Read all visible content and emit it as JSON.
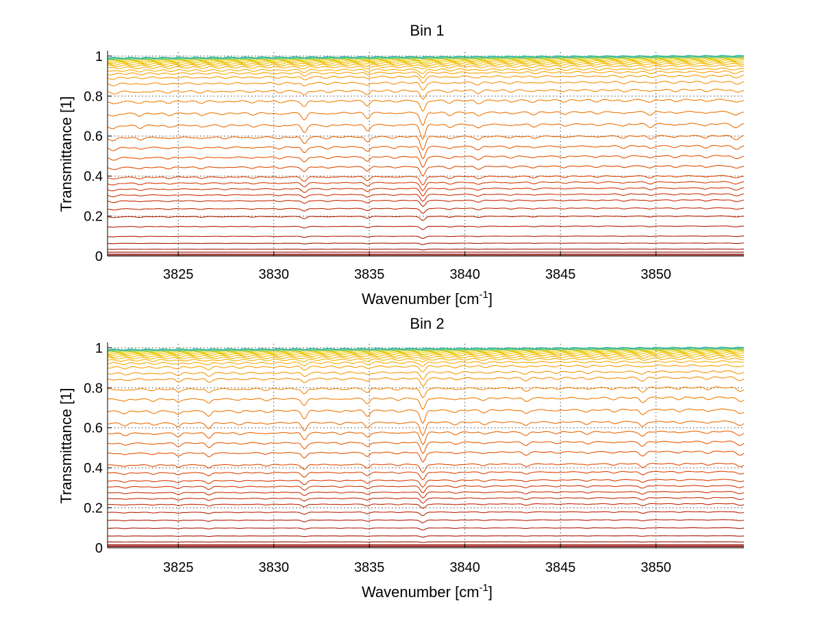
{
  "chart_data": [
    {
      "type": "line",
      "title": "Bin 1",
      "xlabel": "Wavenumber [cm",
      "xlabel_sup": "-1",
      "xlabel_end": "]",
      "ylabel": "Transmittance [1]",
      "xlim": [
        3821.3,
        3854.6
      ],
      "ylim": [
        0,
        1.02
      ],
      "xticks": [
        3825,
        3830,
        3835,
        3840,
        3845,
        3850
      ],
      "yticks": [
        0,
        0.2,
        0.4,
        0.6,
        0.8,
        1
      ],
      "xtick_labels": [
        "3825",
        "3830",
        "3835",
        "3840",
        "3845",
        "3850"
      ],
      "ytick_labels": [
        "0",
        "0.2",
        "0.4",
        "0.6",
        "0.8",
        "1"
      ],
      "grid": true,
      "series_count": 40,
      "series_colormap": [
        "#7a0000",
        "#b01a00",
        "#d83a00",
        "#f07000",
        "#f8a800",
        "#e8d000",
        "#20b8b0"
      ],
      "baseline_levels": [
        0.0,
        0.005,
        0.01,
        0.02,
        0.035,
        0.065,
        0.1,
        0.15,
        0.2,
        0.24,
        0.28,
        0.31,
        0.34,
        0.37,
        0.4,
        0.45,
        0.5,
        0.55,
        0.6,
        0.66,
        0.72,
        0.78,
        0.83,
        0.87,
        0.9,
        0.92,
        0.935,
        0.95,
        0.96,
        0.968,
        0.975,
        0.98,
        0.985,
        0.988,
        0.991,
        0.993,
        0.995,
        0.996,
        0.997,
        0.998
      ],
      "absorption_lines": [
        {
          "x": 3821.6,
          "depth": 0.2,
          "width": 0.25
        },
        {
          "x": 3823.0,
          "depth": 0.15,
          "width": 0.2
        },
        {
          "x": 3824.5,
          "depth": 0.12,
          "width": 0.2
        },
        {
          "x": 3826.2,
          "depth": 0.12,
          "width": 0.2
        },
        {
          "x": 3827.4,
          "depth": 0.08,
          "width": 0.2
        },
        {
          "x": 3828.9,
          "depth": 0.1,
          "width": 0.2
        },
        {
          "x": 3830.3,
          "depth": 0.12,
          "width": 0.2
        },
        {
          "x": 3831.6,
          "depth": 0.45,
          "width": 0.18
        },
        {
          "x": 3832.8,
          "depth": 0.12,
          "width": 0.2
        },
        {
          "x": 3834.9,
          "depth": 0.38,
          "width": 0.18
        },
        {
          "x": 3836.3,
          "depth": 0.1,
          "width": 0.2
        },
        {
          "x": 3837.8,
          "depth": 0.9,
          "width": 0.18
        },
        {
          "x": 3839.2,
          "depth": 0.18,
          "width": 0.2
        },
        {
          "x": 3840.7,
          "depth": 0.25,
          "width": 0.2
        },
        {
          "x": 3842.4,
          "depth": 0.12,
          "width": 0.2
        },
        {
          "x": 3843.6,
          "depth": 0.15,
          "width": 0.2
        },
        {
          "x": 3845.2,
          "depth": 0.12,
          "width": 0.2
        },
        {
          "x": 3846.9,
          "depth": 0.1,
          "width": 0.2
        },
        {
          "x": 3848.3,
          "depth": 0.15,
          "width": 0.2
        },
        {
          "x": 3849.7,
          "depth": 0.2,
          "width": 0.2
        },
        {
          "x": 3851.0,
          "depth": 0.12,
          "width": 0.2
        },
        {
          "x": 3852.6,
          "depth": 0.15,
          "width": 0.2
        },
        {
          "x": 3854.2,
          "depth": 0.25,
          "width": 0.25
        }
      ]
    },
    {
      "type": "line",
      "title": "Bin 2",
      "xlabel": "Wavenumber [cm",
      "xlabel_sup": "-1",
      "xlabel_end": "]",
      "ylabel": "Transmittance [1]",
      "xlim": [
        3821.3,
        3854.6
      ],
      "ylim": [
        0,
        1.02
      ],
      "xticks": [
        3825,
        3830,
        3835,
        3840,
        3845,
        3850
      ],
      "yticks": [
        0,
        0.2,
        0.4,
        0.6,
        0.8,
        1
      ],
      "xtick_labels": [
        "3825",
        "3830",
        "3835",
        "3840",
        "3845",
        "3850"
      ],
      "ytick_labels": [
        "0",
        "0.2",
        "0.4",
        "0.6",
        "0.8",
        "1"
      ],
      "grid": true,
      "series_count": 40,
      "series_colormap": [
        "#7a0000",
        "#b01a00",
        "#d83a00",
        "#f07000",
        "#f8a800",
        "#e8d000",
        "#20b8b0"
      ],
      "baseline_levels": [
        0.0,
        0.005,
        0.01,
        0.015,
        0.03,
        0.06,
        0.1,
        0.14,
        0.18,
        0.22,
        0.25,
        0.28,
        0.31,
        0.34,
        0.38,
        0.42,
        0.48,
        0.53,
        0.58,
        0.63,
        0.69,
        0.75,
        0.8,
        0.85,
        0.88,
        0.91,
        0.93,
        0.945,
        0.956,
        0.965,
        0.973,
        0.979,
        0.984,
        0.988,
        0.991,
        0.993,
        0.995,
        0.996,
        0.997,
        0.998
      ],
      "absorption_lines": [
        {
          "x": 3822.2,
          "depth": 0.15,
          "width": 0.2
        },
        {
          "x": 3823.7,
          "depth": 0.12,
          "width": 0.2
        },
        {
          "x": 3825.0,
          "depth": 0.25,
          "width": 0.18
        },
        {
          "x": 3826.6,
          "depth": 0.35,
          "width": 0.18
        },
        {
          "x": 3828.2,
          "depth": 0.1,
          "width": 0.2
        },
        {
          "x": 3829.6,
          "depth": 0.1,
          "width": 0.2
        },
        {
          "x": 3831.6,
          "depth": 0.5,
          "width": 0.18
        },
        {
          "x": 3833.5,
          "depth": 0.1,
          "width": 0.2
        },
        {
          "x": 3834.9,
          "depth": 0.35,
          "width": 0.18
        },
        {
          "x": 3836.5,
          "depth": 0.1,
          "width": 0.2
        },
        {
          "x": 3837.8,
          "depth": 0.85,
          "width": 0.18
        },
        {
          "x": 3839.5,
          "depth": 0.15,
          "width": 0.2
        },
        {
          "x": 3841.0,
          "depth": 0.15,
          "width": 0.2
        },
        {
          "x": 3843.2,
          "depth": 0.25,
          "width": 0.2
        },
        {
          "x": 3844.8,
          "depth": 0.1,
          "width": 0.2
        },
        {
          "x": 3846.4,
          "depth": 0.15,
          "width": 0.2
        },
        {
          "x": 3847.8,
          "depth": 0.12,
          "width": 0.2
        },
        {
          "x": 3849.3,
          "depth": 0.35,
          "width": 0.2
        },
        {
          "x": 3851.2,
          "depth": 0.12,
          "width": 0.2
        },
        {
          "x": 3852.7,
          "depth": 0.15,
          "width": 0.2
        },
        {
          "x": 3854.4,
          "depth": 0.3,
          "width": 0.25
        }
      ]
    }
  ]
}
